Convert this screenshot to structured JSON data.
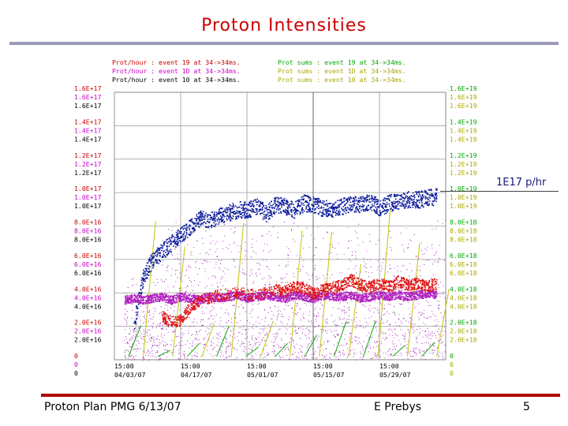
{
  "slide": {
    "title": "Proton Intensities",
    "callout": "1E17 p/hr",
    "footer_left": "Proton Plan PMG 6/13/07",
    "footer_center": "E Prebys",
    "footer_right": "5"
  },
  "colors": {
    "title": "#cc0000",
    "per_hour_1": "#cc0000",
    "per_hour_2": "#cc00cc",
    "per_hour_3": "#000000",
    "sums_1": "#00aa00",
    "sums_2": "#aaaa00",
    "sums_3": "#aaaa00",
    "blue_trace": "#0a1a9a",
    "purple_trace": "#b020c0",
    "red_trace": "#e01010"
  },
  "chart_data": {
    "type": "scatter",
    "title": "",
    "legend": [
      {
        "text": "Prot/hour : event 19 at 34->34ms.",
        "color": "#cc0000"
      },
      {
        "text": "Prot/hour : event 1D at 34->34ms.",
        "color": "#cc00cc"
      },
      {
        "text": "Prot/hour : event 10 at 34->34ms.",
        "color": "#000000"
      },
      {
        "text": "Prot sums : event 19 at 34->34ms.",
        "color": "#00aa00"
      },
      {
        "text": "Prot sums : event 1D at 34->34ms.",
        "color": "#aaaa00"
      },
      {
        "text": "Prot sums : event 10 at 34->34ms.",
        "color": "#aaaa00"
      }
    ],
    "left_axis": {
      "ylim": [
        0,
        1.6e+17
      ],
      "groups": [
        {
          "value": 1.6e+17,
          "labels": [
            "1.6E+17",
            "1.6E+17",
            "1.6E+17"
          ]
        },
        {
          "value": 1.4e+17,
          "labels": [
            "1.4E+17",
            "1.4E+17",
            "1.4E+17"
          ]
        },
        {
          "value": 1.2e+17,
          "labels": [
            "1.2E+17",
            "1.2E+17",
            "1.2E+17"
          ]
        },
        {
          "value": 1e+17,
          "labels": [
            "1.0E+17",
            "1.0E+17",
            "1.0E+17"
          ]
        },
        {
          "value": 8e+16,
          "labels": [
            "8.0E+16",
            "8.0E+16",
            "8.0E+16"
          ]
        },
        {
          "value": 6e+16,
          "labels": [
            "6.0E+16",
            "6.0E+16",
            "6.0E+16"
          ]
        },
        {
          "value": 4e+16,
          "labels": [
            "4.0E+16",
            "4.0E+16",
            "4.0E+16"
          ]
        },
        {
          "value": 2e+16,
          "labels": [
            "2.0E+16",
            "2.0E+16",
            "2.0E+16"
          ]
        },
        {
          "value": 0,
          "labels": [
            "0",
            "0",
            "0"
          ]
        }
      ]
    },
    "right_axis": {
      "ylim": [
        0,
        1.6e+19
      ],
      "groups": [
        {
          "value": 1.6e+19,
          "labels": [
            "1.6E+19",
            "1.6E+19",
            "1.6E+19"
          ]
        },
        {
          "value": 1.4e+19,
          "labels": [
            "1.4E+19",
            "1.4E+19",
            "1.4E+19"
          ]
        },
        {
          "value": 1.2e+19,
          "labels": [
            "1.2E+19",
            "1.2E+19",
            "1.2E+19"
          ]
        },
        {
          "value": 1e+19,
          "labels": [
            "1.0E+19",
            "1.0E+19",
            "1.0E+19"
          ]
        },
        {
          "value": 8e+18,
          "labels": [
            "8.0E+18",
            "8.0E+18",
            "8.0E+18"
          ]
        },
        {
          "value": 6e+18,
          "labels": [
            "6.0E+18",
            "6.0E+18",
            "6.0E+18"
          ]
        },
        {
          "value": 4e+18,
          "labels": [
            "4.0E+18",
            "4.0E+18",
            "4.0E+18"
          ]
        },
        {
          "value": 2e+18,
          "labels": [
            "2.0E+18",
            "2.0E+18",
            "2.0E+18"
          ]
        },
        {
          "value": 0,
          "labels": [
            "0",
            "0",
            "0"
          ]
        }
      ]
    },
    "x_axis": {
      "xlim": [
        "04/03/07",
        "06/12/07"
      ],
      "ticks": [
        {
          "time": "15:00",
          "date": "04/03/07"
        },
        {
          "time": "15:00",
          "date": "04/17/07"
        },
        {
          "time": "15:00",
          "date": "05/01/07"
        },
        {
          "time": "15:00",
          "date": "05/15/07"
        },
        {
          "time": "15:00",
          "date": "05/29/07"
        }
      ]
    },
    "grid": true,
    "series": [
      {
        "role": "blue_trace",
        "color": "#0a1a9a",
        "days": [
          4,
          6,
          8,
          10,
          12,
          14,
          16,
          18,
          20,
          22,
          24,
          26,
          28,
          30,
          32,
          34,
          36,
          38,
          40,
          42,
          44,
          46,
          48,
          50,
          52,
          54,
          56,
          58,
          60,
          62,
          64,
          66,
          68
        ],
        "values": [
          2e+16,
          5e+16,
          6e+16,
          6.5e+16,
          7e+16,
          7.5e+16,
          8e+16,
          8.5e+16,
          8.3e+16,
          8.6e+16,
          8.8e+16,
          9e+16,
          9e+16,
          9.2e+16,
          8.8e+16,
          9.3e+16,
          9.2e+16,
          9e+16,
          9.4e+16,
          9.3e+16,
          9.1e+16,
          9e+16,
          9.2e+16,
          9.4e+16,
          9.3e+16,
          9.5e+16,
          9.1e+16,
          9.4e+16,
          9.5e+16,
          9.6e+16,
          9.6e+16,
          9.7e+16,
          9.8e+16
        ]
      },
      {
        "role": "purple_trace",
        "color": "#b020c0",
        "days": [
          2,
          4,
          6,
          8,
          10,
          12,
          14,
          16,
          18,
          20,
          22,
          24,
          26,
          28,
          30,
          32,
          34,
          36,
          38,
          40,
          42,
          44,
          46,
          48,
          50,
          52,
          54,
          56,
          58,
          60,
          62,
          64,
          66,
          68
        ],
        "values": [
          3.6e+16,
          3.7e+16,
          3.6e+16,
          3.7e+16,
          3.8e+16,
          3.6e+16,
          3.8e+16,
          3.7e+16,
          3.6e+16,
          3.8e+16,
          3.7e+16,
          3.8e+16,
          3.9e+16,
          3.7e+16,
          3.8e+16,
          3.9e+16,
          3.8e+16,
          3.7e+16,
          3.9e+16,
          3.8e+16,
          3.7e+16,
          3.9e+16,
          3.8e+16,
          3.8e+16,
          3.9e+16,
          3.7e+16,
          3.8e+16,
          3.9e+16,
          3.8e+16,
          3.9e+16,
          3.8e+16,
          3.9e+16,
          4e+16,
          3.9e+16
        ]
      },
      {
        "role": "red_trace",
        "color": "#e01010",
        "days": [
          10,
          12,
          14,
          16,
          18,
          22,
          26,
          30,
          34,
          36,
          38,
          40,
          42,
          44,
          46,
          48,
          50,
          52,
          54,
          56,
          58,
          60,
          62,
          64,
          66,
          68
        ],
        "values": [
          2.6e+16,
          2.3e+16,
          2.4e+16,
          3.2e+16,
          3.6e+16,
          3.9e+16,
          4e+16,
          3.9e+16,
          4.2e+16,
          4.1e+16,
          4.4e+16,
          4.3e+16,
          4e+16,
          4.2e+16,
          4.3e+16,
          4.5e+16,
          4.8e+16,
          4.5e+16,
          4.4e+16,
          4.6e+16,
          4.4e+16,
          4.7e+16,
          4.5e+16,
          4.6e+16,
          4.4e+16,
          4.6e+16
        ]
      }
    ]
  }
}
